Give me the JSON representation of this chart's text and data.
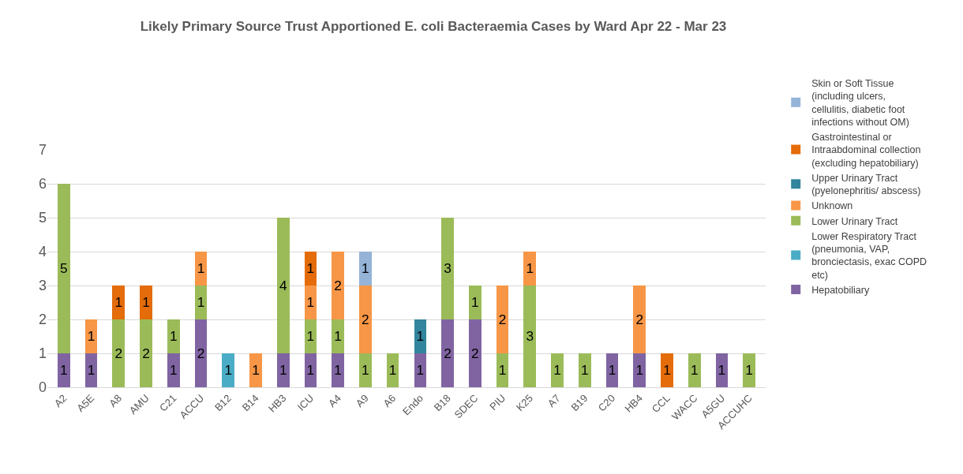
{
  "chart_data": {
    "type": "bar",
    "title": "Likely Primary Source Trust Apportioned E. coli Bacteraemia Cases by Ward Apr 22 - Mar 23",
    "stacked": true,
    "data_labels": true,
    "grid": "y",
    "legend": "right",
    "ylim": [
      0,
      7
    ],
    "yticks": [
      0,
      1,
      2,
      3,
      4,
      5,
      6,
      7
    ],
    "categories": [
      "A2",
      "A5E",
      "A8",
      "AMU",
      "C21",
      "ACCU",
      "B12",
      "B14",
      "HB3",
      "ICU",
      "A4",
      "A9",
      "A6",
      "Endo",
      "B18",
      "SDEC",
      "PIU",
      "K25",
      "A7",
      "B19",
      "C20",
      "HB4",
      "CCL",
      "WACC",
      "A5GU",
      "ACCUHC"
    ],
    "series": [
      {
        "name": "Hepatobiliary",
        "color": "#8064a2",
        "values": [
          1,
          1,
          null,
          null,
          1,
          2,
          null,
          null,
          1,
          1,
          1,
          null,
          null,
          1,
          2,
          2,
          null,
          null,
          null,
          null,
          1,
          1,
          null,
          null,
          1,
          null
        ]
      },
      {
        "name": "Lower Respiratory Tract (pneumonia, VAP, bronciectasis, exac COPD etc)",
        "color": "#4bacc6",
        "values": [
          null,
          null,
          null,
          null,
          null,
          null,
          1,
          null,
          null,
          null,
          null,
          null,
          null,
          null,
          null,
          null,
          null,
          null,
          null,
          null,
          null,
          null,
          null,
          null,
          null,
          null
        ]
      },
      {
        "name": "Lower Urinary Tract",
        "color": "#9bbb59",
        "values": [
          5,
          null,
          2,
          2,
          1,
          1,
          null,
          null,
          4,
          1,
          1,
          1,
          1,
          null,
          3,
          1,
          1,
          3,
          1,
          1,
          null,
          null,
          null,
          1,
          null,
          1
        ]
      },
      {
        "name": "Unknown",
        "color": "#f79646",
        "values": [
          null,
          1,
          null,
          null,
          null,
          1,
          null,
          1,
          null,
          1,
          2,
          2,
          null,
          null,
          null,
          null,
          2,
          1,
          null,
          null,
          null,
          2,
          null,
          null,
          null,
          null
        ]
      },
      {
        "name": "Upper Urinary Tract (pyelonephritis/ abscess)",
        "color": "#31859c",
        "values": [
          null,
          null,
          null,
          null,
          null,
          null,
          null,
          null,
          null,
          null,
          null,
          null,
          null,
          1,
          null,
          null,
          null,
          null,
          null,
          null,
          null,
          null,
          null,
          null,
          null,
          null
        ]
      },
      {
        "name": "Gastrointestinal or Intraabdominal collection (excluding hepatobiliary)",
        "color": "#e46c0a",
        "values": [
          null,
          null,
          1,
          1,
          null,
          null,
          null,
          null,
          null,
          1,
          null,
          null,
          null,
          null,
          null,
          null,
          null,
          null,
          null,
          null,
          null,
          null,
          1,
          null,
          null,
          null
        ]
      },
      {
        "name": "Skin or Soft Tissue (including ulcers, cellulitis, diabetic foot infections without OM)",
        "color": "#95b3d7",
        "values": [
          null,
          null,
          null,
          null,
          null,
          null,
          null,
          null,
          null,
          null,
          null,
          1,
          null,
          null,
          null,
          null,
          null,
          null,
          null,
          null,
          null,
          null,
          null,
          null,
          null,
          null
        ]
      }
    ]
  }
}
